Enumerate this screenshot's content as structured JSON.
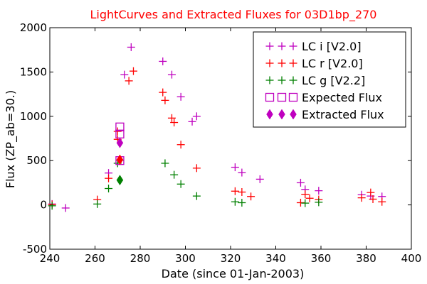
{
  "chart_data": {
    "type": "scatter",
    "title": "LightCurves and Extracted Fluxes for 03D1bp_270",
    "title_color": "#ff0000",
    "xlabel": "Date (since 01-Jan-2003)",
    "ylabel": "Flux (ZP_ab=30.)",
    "xlim": [
      240,
      400
    ],
    "ylim": [
      -500,
      2000
    ],
    "xticks": [
      "240",
      "260",
      "280",
      "300",
      "320",
      "340",
      "360",
      "380",
      "400"
    ],
    "yticks": [
      "-500",
      "0",
      "500",
      "1000",
      "1500",
      "2000"
    ],
    "grid": false,
    "legend_position": "top-right",
    "series": [
      {
        "name": "LC i [V2.0]",
        "marker": "plus",
        "color": "#bf00bf",
        "points": [
          [
            241,
            10
          ],
          [
            247,
            -35
          ],
          [
            266,
            360
          ],
          [
            273,
            1470
          ],
          [
            276,
            1780
          ],
          [
            290,
            1620
          ],
          [
            294,
            1470
          ],
          [
            298,
            1220
          ],
          [
            303,
            940
          ],
          [
            305,
            1000
          ],
          [
            322,
            425
          ],
          [
            325,
            365
          ],
          [
            333,
            290
          ],
          [
            351,
            250
          ],
          [
            353,
            175
          ],
          [
            359,
            160
          ],
          [
            378,
            115
          ],
          [
            382,
            100
          ],
          [
            387,
            95
          ]
        ]
      },
      {
        "name": "LC r [V2.0]",
        "marker": "plus",
        "color": "#ff0000",
        "points": [
          [
            241,
            5
          ],
          [
            261,
            60
          ],
          [
            266,
            300
          ],
          [
            270,
            740
          ],
          [
            270,
            830
          ],
          [
            275,
            1400
          ],
          [
            277,
            1510
          ],
          [
            290,
            1270
          ],
          [
            291,
            1180
          ],
          [
            294,
            980
          ],
          [
            295,
            930
          ],
          [
            298,
            680
          ],
          [
            305,
            415
          ],
          [
            322,
            155
          ],
          [
            325,
            145
          ],
          [
            329,
            95
          ],
          [
            351,
            25
          ],
          [
            353,
            120
          ],
          [
            355,
            75
          ],
          [
            359,
            60
          ],
          [
            378,
            80
          ],
          [
            382,
            140
          ],
          [
            383,
            65
          ],
          [
            387,
            35
          ]
        ]
      },
      {
        "name": "LC g [V2.2]",
        "marker": "plus",
        "color": "#008000",
        "points": [
          [
            241,
            -10
          ],
          [
            261,
            10
          ],
          [
            266,
            185
          ],
          [
            270,
            470
          ],
          [
            271,
            505
          ],
          [
            291,
            470
          ],
          [
            295,
            340
          ],
          [
            298,
            235
          ],
          [
            305,
            100
          ],
          [
            322,
            35
          ],
          [
            325,
            25
          ],
          [
            353,
            20
          ],
          [
            359,
            30
          ]
        ]
      }
    ],
    "expected_flux": {
      "name": "Expected Flux",
      "marker": "square",
      "color": "#bf00bf",
      "points": [
        [
          271,
          880
        ],
        [
          271,
          800
        ],
        [
          271,
          500
        ]
      ]
    },
    "extracted_flux": {
      "name": "Extracted Flux",
      "marker": "diamond",
      "points": [
        [
          271,
          700,
          "#bf00bf"
        ],
        [
          271,
          510,
          "#ff0000"
        ],
        [
          271,
          280,
          "#008000"
        ]
      ]
    }
  }
}
